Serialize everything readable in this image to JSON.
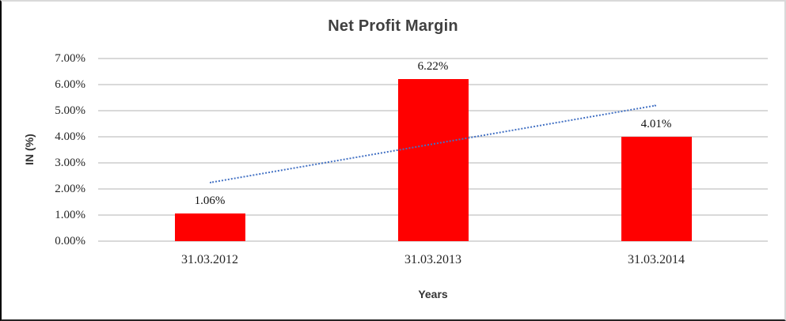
{
  "chart_data": {
    "type": "bar",
    "title": "Net Profit Margin",
    "categories": [
      "31.03.2012",
      "31.03.2013",
      "31.03.2014"
    ],
    "values": [
      1.06,
      6.22,
      4.01
    ],
    "data_labels": [
      "1.06%",
      "6.22%",
      "4.01%"
    ],
    "xlabel": "Years",
    "ylabel": "IN (%)",
    "ylim": [
      0,
      7
    ],
    "ytick_labels": [
      "0.00%",
      "1.00%",
      "2.00%",
      "3.00%",
      "4.00%",
      "5.00%",
      "6.00%",
      "7.00%"
    ],
    "grid": true,
    "legend": "none",
    "bar_color": "#FF0000",
    "gridline_color": "#D9D9D9",
    "trendline": {
      "type": "linear",
      "style": "dotted",
      "color": "#4472C4",
      "start_value": 2.28,
      "end_value": 5.24
    }
  }
}
